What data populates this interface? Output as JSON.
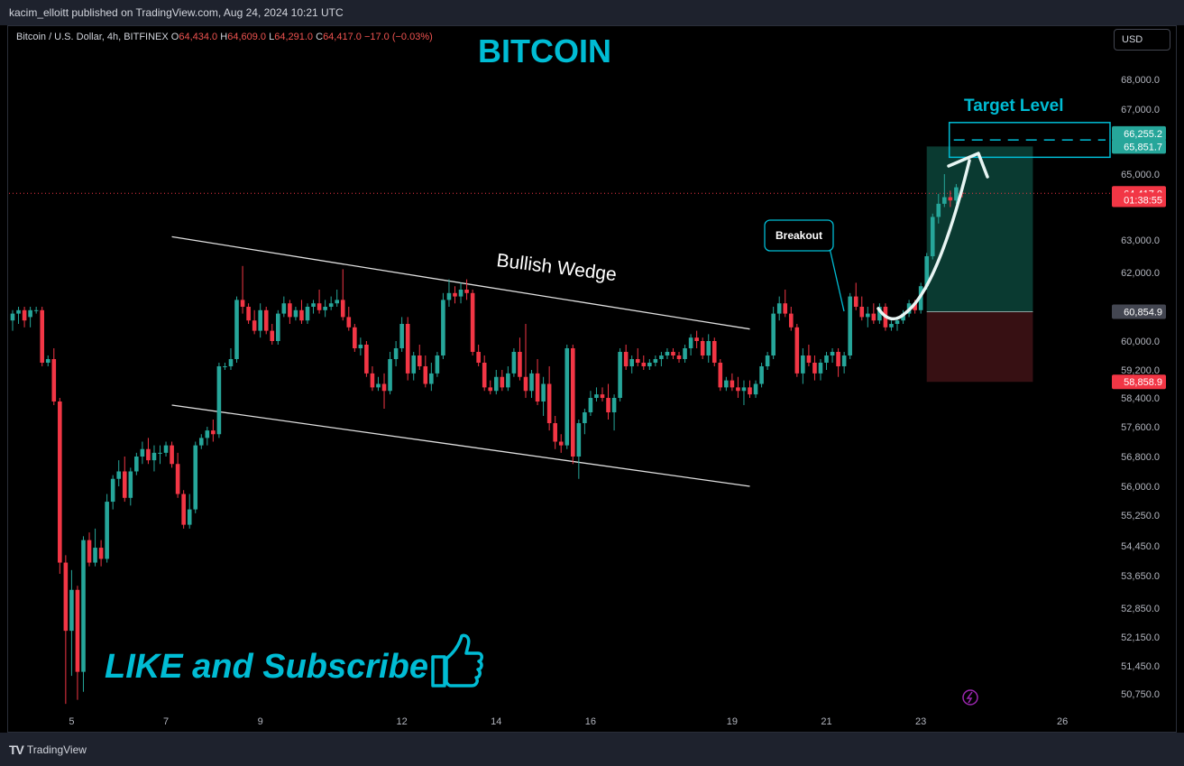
{
  "header": {
    "publisher_line": "kacim_elloitt published on TradingView.com, Aug 24, 2024 10:21 UTC"
  },
  "symbol": {
    "name": "Bitcoin / U.S. Dollar, 4h, BITFINEX",
    "o_label": "O",
    "o": "64,434.0",
    "h_label": "H",
    "h": "64,609.0",
    "l_label": "L",
    "l": "64,291.0",
    "c_label": "C",
    "c": "64,417.0",
    "change": "−17.0 (−0.03%)"
  },
  "currency_button": "USD",
  "headline": "BITCOIN",
  "footer": {
    "brand": "TradingView"
  },
  "annotations": {
    "pattern": "Bullish Wedge",
    "breakout": "Breakout",
    "target": "Target Level",
    "cta": "LIKE and Subscribe"
  },
  "icons": [
    "thumbs-up-icon",
    "lightning-icon",
    "tradingview-logo-icon"
  ],
  "colors": {
    "up": "#26a69a",
    "down": "#f23645",
    "accent": "#00bcd4",
    "profit_zone": "#0b3d34",
    "loss_zone": "#3a1114"
  },
  "price_labels": [
    {
      "text": "66,255.2",
      "value": 66255.2,
      "kind": "target"
    },
    {
      "text": "65,851.7",
      "value": 65851.7,
      "kind": "target"
    },
    {
      "text": "64,417.0",
      "value": 64417,
      "kind": "last"
    },
    {
      "text": "01:38:55",
      "value": 64220,
      "kind": "countdown"
    },
    {
      "text": "60,854.9",
      "value": 60854.9,
      "kind": "entry"
    },
    {
      "text": "58,858.9",
      "value": 58858.9,
      "kind": "stop"
    }
  ],
  "chart_data": {
    "type": "candlestick",
    "title": "BITCOIN",
    "ticker": "BTCUSD",
    "exchange": "BITFINEX",
    "interval": "4h",
    "y_ticks": [
      68000,
      67000,
      65000,
      63000,
      62000,
      60000,
      59200,
      58400,
      57600,
      56800,
      56000,
      55250,
      54450,
      53650,
      52850,
      52150,
      51450,
      50750
    ],
    "y_tick_labels": [
      "68,000.0",
      "67,000.0",
      "65,000.0",
      "63,000.0",
      "62,000.0",
      "60,000.0",
      "59,200.0",
      "58,400.0",
      "57,600.0",
      "56,800.0",
      "56,000.0",
      "55,250.0",
      "54,450.0",
      "53,650.0",
      "52,850.0",
      "52,150.0",
      "51,450.0",
      "50,750.0"
    ],
    "x_ticks": [
      "5",
      "7",
      "9",
      "12",
      "14",
      "16",
      "19",
      "21",
      "23",
      "26"
    ],
    "x_tick_index": [
      10,
      26,
      42,
      66,
      82,
      98,
      122,
      138,
      154,
      178
    ],
    "candles": [
      [
        60600,
        60900,
        60300,
        60800
      ],
      [
        60800,
        61000,
        60500,
        60900
      ],
      [
        60900,
        61000,
        60400,
        60600
      ],
      [
        60700,
        61000,
        60400,
        60900
      ],
      [
        60900,
        61000,
        60800,
        60900
      ],
      [
        60900,
        61000,
        59300,
        59400
      ],
      [
        59400,
        59600,
        59300,
        59500
      ],
      [
        59500,
        59800,
        58200,
        58300
      ],
      [
        58300,
        58400,
        53700,
        54000
      ],
      [
        54000,
        54200,
        50500,
        52300
      ],
      [
        52300,
        53800,
        51200,
        53300
      ],
      [
        53300,
        53400,
        50600,
        51300
      ],
      [
        51300,
        54700,
        50800,
        54600
      ],
      [
        54600,
        54800,
        53900,
        54000
      ],
      [
        54000,
        54900,
        53900,
        54400
      ],
      [
        54400,
        54600,
        53900,
        54100
      ],
      [
        54100,
        55800,
        54000,
        55600
      ],
      [
        55600,
        56300,
        55400,
        56200
      ],
      [
        56200,
        56700,
        56000,
        56400
      ],
      [
        56400,
        56800,
        55600,
        55700
      ],
      [
        55700,
        56500,
        55500,
        56400
      ],
      [
        56400,
        56900,
        56300,
        56800
      ],
      [
        56800,
        57200,
        56600,
        57000
      ],
      [
        57000,
        57300,
        56600,
        56700
      ],
      [
        56700,
        57100,
        56400,
        56900
      ],
      [
        56900,
        57100,
        56600,
        56900
      ],
      [
        56900,
        57200,
        56800,
        57100
      ],
      [
        57100,
        57200,
        56500,
        56600
      ],
      [
        56600,
        56900,
        55700,
        55800
      ],
      [
        55800,
        55900,
        54900,
        55000
      ],
      [
        55000,
        55800,
        54900,
        55400
      ],
      [
        55400,
        57200,
        55300,
        57100
      ],
      [
        57100,
        57400,
        57000,
        57300
      ],
      [
        57300,
        57600,
        57100,
        57500
      ],
      [
        57500,
        57800,
        57200,
        57400
      ],
      [
        57400,
        59400,
        57300,
        59300
      ],
      [
        59300,
        59400,
        59200,
        59300
      ],
      [
        59300,
        59800,
        59200,
        59500
      ],
      [
        59500,
        61300,
        59400,
        61200
      ],
      [
        61200,
        62200,
        60800,
        61000
      ],
      [
        61000,
        61100,
        60500,
        60600
      ],
      [
        60600,
        60900,
        60200,
        60300
      ],
      [
        60300,
        61100,
        60100,
        60900
      ],
      [
        60900,
        61000,
        60200,
        60300
      ],
      [
        60300,
        60500,
        59900,
        60000
      ],
      [
        60000,
        60900,
        59900,
        60800
      ],
      [
        60800,
        61300,
        60700,
        61100
      ],
      [
        61100,
        61200,
        60500,
        60700
      ],
      [
        60700,
        61000,
        60600,
        60900
      ],
      [
        60900,
        61200,
        60500,
        60600
      ],
      [
        60600,
        61100,
        60500,
        61000
      ],
      [
        61000,
        61200,
        60800,
        61100
      ],
      [
        61100,
        61500,
        60800,
        60900
      ],
      [
        60900,
        61200,
        60700,
        61000
      ],
      [
        61000,
        61300,
        60900,
        61100
      ],
      [
        61100,
        61500,
        61000,
        61200
      ],
      [
        61200,
        62100,
        60600,
        60700
      ],
      [
        60700,
        61000,
        60300,
        60400
      ],
      [
        60400,
        60500,
        59700,
        59800
      ],
      [
        59800,
        60100,
        59600,
        59900
      ],
      [
        59900,
        60000,
        59000,
        59100
      ],
      [
        59100,
        59300,
        58600,
        58700
      ],
      [
        58700,
        59000,
        58600,
        58800
      ],
      [
        58800,
        59100,
        58100,
        58600
      ],
      [
        58600,
        59700,
        58500,
        59500
      ],
      [
        59500,
        60000,
        59300,
        59800
      ],
      [
        59800,
        60700,
        59700,
        60500
      ],
      [
        60500,
        60700,
        58900,
        59100
      ],
      [
        59100,
        59700,
        58900,
        59600
      ],
      [
        59600,
        59900,
        59200,
        59300
      ],
      [
        59300,
        59600,
        58700,
        58800
      ],
      [
        58800,
        59400,
        58600,
        59100
      ],
      [
        59100,
        59700,
        59000,
        59600
      ],
      [
        59600,
        61400,
        59500,
        61200
      ],
      [
        61200,
        61800,
        61000,
        61400
      ],
      [
        61400,
        61600,
        61100,
        61300
      ],
      [
        61300,
        61700,
        61100,
        61500
      ],
      [
        61500,
        61800,
        61200,
        61400
      ],
      [
        61400,
        61500,
        59600,
        59700
      ],
      [
        59700,
        59900,
        59300,
        59400
      ],
      [
        59400,
        59600,
        58600,
        58700
      ],
      [
        58700,
        58900,
        58500,
        58600
      ],
      [
        58600,
        59200,
        58500,
        59000
      ],
      [
        59000,
        59200,
        58600,
        58700
      ],
      [
        58700,
        59300,
        58600,
        59100
      ],
      [
        59100,
        59800,
        59000,
        59700
      ],
      [
        59700,
        60100,
        58900,
        59000
      ],
      [
        59000,
        60500,
        58400,
        58600
      ],
      [
        58600,
        59200,
        58400,
        59100
      ],
      [
        59100,
        59500,
        58200,
        58300
      ],
      [
        58300,
        59000,
        57900,
        58800
      ],
      [
        58800,
        59300,
        57500,
        57700
      ],
      [
        57700,
        57900,
        57000,
        57200
      ],
      [
        57200,
        57400,
        56900,
        57100
      ],
      [
        57100,
        59900,
        57000,
        59800
      ],
      [
        59800,
        59900,
        56600,
        56800
      ],
      [
        56800,
        57800,
        56200,
        57700
      ],
      [
        57700,
        58100,
        57400,
        58000
      ],
      [
        58000,
        58600,
        57900,
        58400
      ],
      [
        58400,
        58700,
        58300,
        58500
      ],
      [
        58500,
        58700,
        58300,
        58400
      ],
      [
        58400,
        58800,
        57800,
        58000
      ],
      [
        58000,
        58500,
        57500,
        58400
      ],
      [
        58400,
        59800,
        58300,
        59700
      ],
      [
        59700,
        59900,
        59200,
        59300
      ],
      [
        59300,
        59600,
        59100,
        59500
      ],
      [
        59500,
        59800,
        59300,
        59400
      ],
      [
        59400,
        59600,
        59200,
        59300
      ],
      [
        59300,
        59500,
        59200,
        59400
      ],
      [
        59400,
        59600,
        59300,
        59500
      ],
      [
        59500,
        59700,
        59300,
        59600
      ],
      [
        59600,
        59800,
        59500,
        59700
      ],
      [
        59700,
        59800,
        59500,
        59600
      ],
      [
        59600,
        59700,
        59400,
        59500
      ],
      [
        59500,
        59900,
        59400,
        59800
      ],
      [
        59800,
        60200,
        59600,
        60100
      ],
      [
        60100,
        60300,
        59800,
        60000
      ],
      [
        60000,
        60100,
        59500,
        59600
      ],
      [
        59600,
        60200,
        59400,
        60000
      ],
      [
        60000,
        60100,
        59300,
        59400
      ],
      [
        59400,
        59500,
        58600,
        58700
      ],
      [
        58700,
        59000,
        58600,
        58900
      ],
      [
        58900,
        59100,
        58600,
        58700
      ],
      [
        58700,
        59000,
        58400,
        58600
      ],
      [
        58600,
        58900,
        58200,
        58700
      ],
      [
        58700,
        58900,
        58400,
        58500
      ],
      [
        58500,
        58900,
        58400,
        58800
      ],
      [
        58800,
        59400,
        58700,
        59300
      ],
      [
        59300,
        59700,
        59200,
        59600
      ],
      [
        59600,
        61000,
        59500,
        60800
      ],
      [
        60800,
        61300,
        60600,
        61100
      ],
      [
        61100,
        61500,
        60700,
        60800
      ],
      [
        60800,
        61000,
        60300,
        60400
      ],
      [
        60400,
        60500,
        59000,
        59100
      ],
      [
        59100,
        59800,
        58800,
        59600
      ],
      [
        59600,
        59900,
        59300,
        59400
      ],
      [
        59400,
        59600,
        58900,
        59100
      ],
      [
        59100,
        59500,
        58900,
        59400
      ],
      [
        59400,
        59700,
        59200,
        59600
      ],
      [
        59600,
        59800,
        59400,
        59700
      ],
      [
        59700,
        59800,
        59000,
        59300
      ],
      [
        59300,
        59700,
        59100,
        59600
      ],
      [
        59600,
        61400,
        59500,
        61300
      ],
      [
        61300,
        61700,
        60900,
        61000
      ],
      [
        61000,
        61300,
        60600,
        60700
      ],
      [
        60700,
        61000,
        60400,
        60800
      ],
      [
        60800,
        61100,
        60500,
        60600
      ],
      [
        60600,
        61100,
        60500,
        61000
      ],
      [
        61000,
        61100,
        60300,
        60400
      ],
      [
        60400,
        60600,
        60300,
        60500
      ],
      [
        60500,
        60700,
        60300,
        60600
      ],
      [
        60600,
        60900,
        60500,
        60800
      ],
      [
        60800,
        61200,
        60700,
        61100
      ],
      [
        61100,
        61200,
        60800,
        60900
      ],
      [
        60900,
        61700,
        60800,
        61600
      ],
      [
        61600,
        62600,
        61500,
        62500
      ],
      [
        62500,
        63800,
        62400,
        63700
      ],
      [
        63700,
        64400,
        63500,
        64100
      ],
      [
        64100,
        65000,
        64000,
        64300
      ],
      [
        64300,
        64500,
        64000,
        64200
      ],
      [
        64200,
        64700,
        64100,
        64600
      ],
      [
        64434,
        64609,
        64291,
        64417
      ]
    ],
    "wedge_upper": [
      {
        "i": 27,
        "price": 63100
      },
      {
        "i": 125,
        "price": 60350
      }
    ],
    "wedge_lower": [
      {
        "i": 27,
        "price": 58200
      },
      {
        "i": 125,
        "price": 56000
      }
    ],
    "position": {
      "entry": 60854.9,
      "target_low": 65851.7,
      "target_high": 66255.2,
      "stop": 58858.9,
      "start_i": 155,
      "end_i": 173
    },
    "last_price": 64417.0,
    "grid": false,
    "legend": "none"
  }
}
